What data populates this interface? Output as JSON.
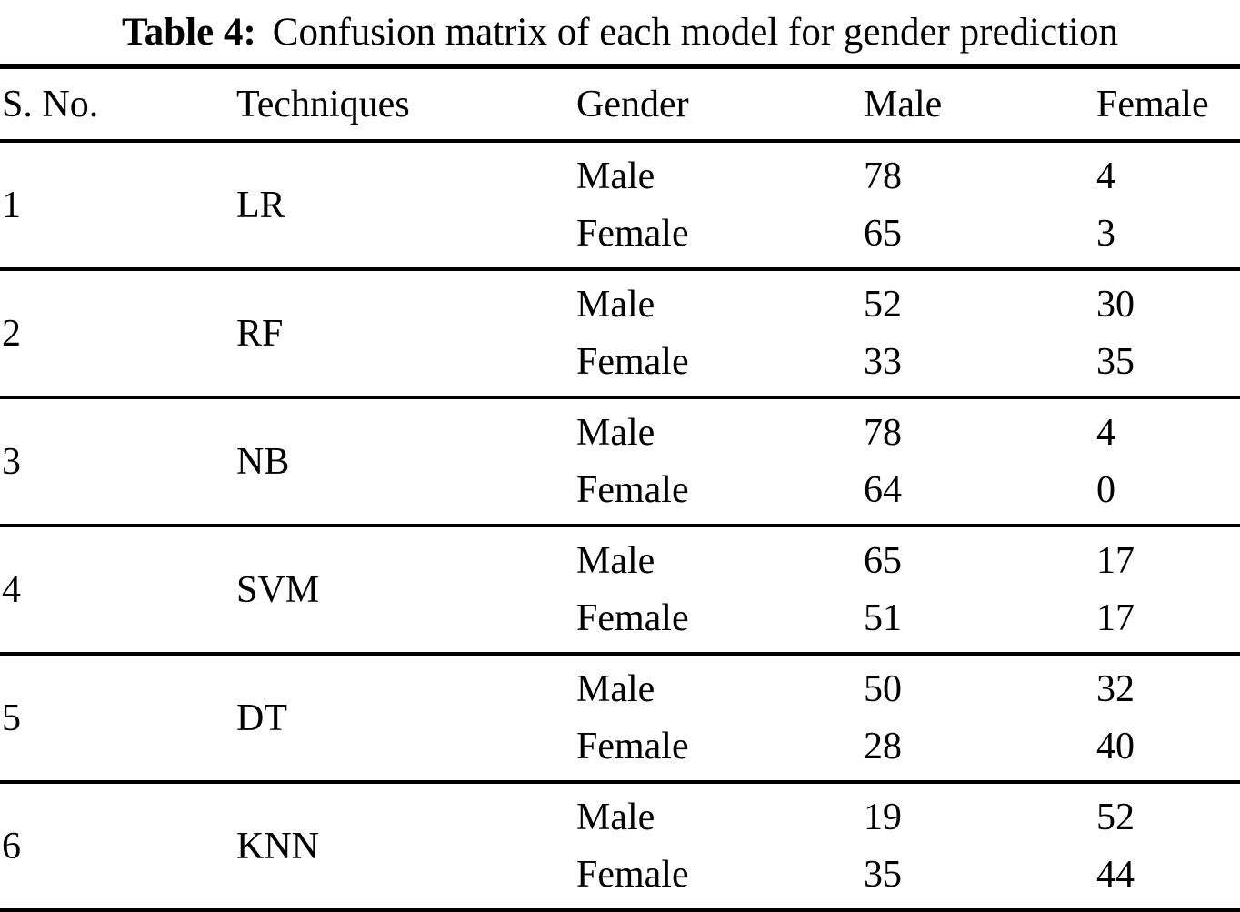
{
  "caption": {
    "label": "Table 4:",
    "text": "Confusion matrix of each model for gender prediction"
  },
  "table": {
    "headers": [
      "S. No.",
      "Techniques",
      "Gender",
      "Male",
      "Female"
    ],
    "rows": [
      {
        "sno": "1",
        "technique": "LR",
        "entries": [
          {
            "gender": "Male",
            "male": "78",
            "female": "4"
          },
          {
            "gender": "Female",
            "male": "65",
            "female": "3"
          }
        ]
      },
      {
        "sno": "2",
        "technique": "RF",
        "entries": [
          {
            "gender": "Male",
            "male": "52",
            "female": "30"
          },
          {
            "gender": "Female",
            "male": "33",
            "female": "35"
          }
        ]
      },
      {
        "sno": "3",
        "technique": "NB",
        "entries": [
          {
            "gender": "Male",
            "male": "78",
            "female": "4"
          },
          {
            "gender": "Female",
            "male": "64",
            "female": "0"
          }
        ]
      },
      {
        "sno": "4",
        "technique": "SVM",
        "entries": [
          {
            "gender": "Male",
            "male": "65",
            "female": "17"
          },
          {
            "gender": "Female",
            "male": "51",
            "female": "17"
          }
        ]
      },
      {
        "sno": "5",
        "technique": "DT",
        "entries": [
          {
            "gender": "Male",
            "male": "50",
            "female": "32"
          },
          {
            "gender": "Female",
            "male": "28",
            "female": "40"
          }
        ]
      },
      {
        "sno": "6",
        "technique": "KNN",
        "entries": [
          {
            "gender": "Male",
            "male": "19",
            "female": "52"
          },
          {
            "gender": "Female",
            "male": "35",
            "female": "44"
          }
        ]
      }
    ]
  },
  "colors": {
    "text": "#000000",
    "background": "#ffffff",
    "rule": "#000000"
  }
}
